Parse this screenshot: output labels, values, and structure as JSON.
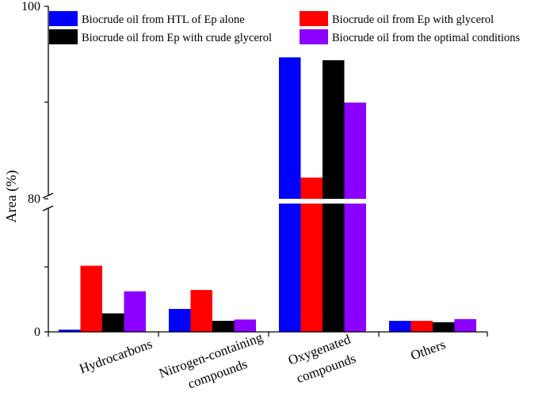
{
  "chart_data": {
    "type": "bar",
    "ylabel": "Area (%)",
    "y_ticks": [
      "0",
      "80",
      "100"
    ],
    "axis_break": [
      30,
      80
    ],
    "categories": [
      [
        "Hydrocarbons"
      ],
      [
        "Nitrogen-containing",
        "compounds"
      ],
      [
        "Oxygenated",
        "compounds"
      ],
      [
        "Others"
      ]
    ],
    "series": [
      {
        "name": "Biocrude oil from HTL of Ep alone",
        "color": "#0000FF",
        "values": [
          0.5,
          5.2,
          94.7,
          2.5
        ]
      },
      {
        "name": "Biocrude oil from Ep with glycerol",
        "color": "#FF0000",
        "values": [
          15.0,
          9.5,
          82.2,
          2.5
        ]
      },
      {
        "name": "Biocrude oil from Ep with crude glycerol",
        "color": "#000000",
        "values": [
          4.2,
          2.5,
          94.4,
          2.2
        ]
      },
      {
        "name": "Biocrude oil from the optimal conditions",
        "color": "#8B00FF",
        "values": [
          9.2,
          2.8,
          90.0,
          2.9
        ]
      }
    ],
    "legend_position": "top"
  }
}
